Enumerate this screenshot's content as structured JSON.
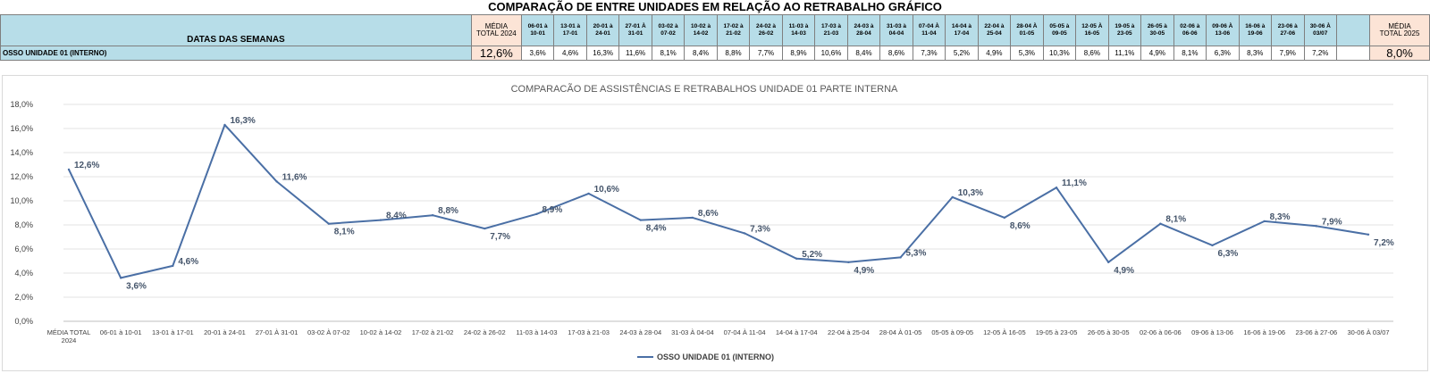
{
  "sheet": {
    "title": "COMPARAÇÃO DE ENTRE UNIDADES EM RELAÇÃO AO RETRABALHO GRÁFICO",
    "row_header": "DATAS DAS SEMANAS",
    "media_2024_header": [
      "MÉDIA",
      "TOTAL 2024"
    ],
    "media_2025_header": [
      "MÉDIA",
      "TOTAL 2025"
    ],
    "week_headers": [
      [
        "06-01 à",
        "10-01"
      ],
      [
        "13-01 à",
        "17-01"
      ],
      [
        "20-01 à",
        "24-01"
      ],
      [
        "27-01 À",
        "31-01"
      ],
      [
        "03-02 à",
        "07-02"
      ],
      [
        "10-02 à",
        "14-02"
      ],
      [
        "17-02 à",
        "21-02"
      ],
      [
        "24-02 à",
        "26-02"
      ],
      [
        "11-03 à",
        "14-03"
      ],
      [
        "17-03 à",
        "21-03"
      ],
      [
        "24-03 à",
        "28-04"
      ],
      [
        "31-03 à",
        "04-04"
      ],
      [
        "07-04 À",
        "11-04"
      ],
      [
        "14-04 à",
        "17-04"
      ],
      [
        "22-04 à",
        "25-04"
      ],
      [
        "28-04 À",
        "01-05"
      ],
      [
        "05-05 à",
        "09-05"
      ],
      [
        "12-05 À",
        "16-05"
      ],
      [
        "19-05 à",
        "23-05"
      ],
      [
        "26-05 à",
        "30-05"
      ],
      [
        "02-06 à",
        "06-06"
      ],
      [
        "09-06 À",
        "13-06"
      ],
      [
        "16-06 à",
        "19-06"
      ],
      [
        "23-06 à",
        "27-06"
      ],
      [
        "30-06 À",
        "03/07"
      ]
    ],
    "row_label": "OSSO UNIDADE 01 (INTERNO)",
    "media_2024_value": "12,6%",
    "week_values": [
      "3,6%",
      "4,6%",
      "16,3%",
      "11,6%",
      "8,1%",
      "8,4%",
      "8,8%",
      "7,7%",
      "8,9%",
      "10,6%",
      "8,4%",
      "8,6%",
      "7,3%",
      "5,2%",
      "4,9%",
      "5,3%",
      "10,3%",
      "8,6%",
      "11,1%",
      "4,9%",
      "8,1%",
      "6,3%",
      "8,3%",
      "7,9%",
      "7,2%"
    ],
    "media_2025_value": "8,0%"
  },
  "chart_data": {
    "type": "line",
    "title": "COMPARACÃO DE ASSISTÊNCIAS E RETRABALHOS UNIDADE 01 PARTE INTERNA",
    "categories": [
      "MÉDIA TOTAL 2024",
      "06-01 à 10-01",
      "13-01 à 17-01",
      "20-01 à 24-01",
      "27-01 À 31-01",
      "03-02 À 07-02",
      "10-02 à 14-02",
      "17-02 à 21-02",
      "24-02 à 26-02",
      "11-03 à 14-03",
      "17-03 à 21-03",
      "24-03 à 28-04",
      "31-03 À 04-04",
      "07-04 À 11-04",
      "14-04 à 17-04",
      "22-04 à 25-04",
      "28-04 À 01-05",
      "05-05 à 09-05",
      "12-05 À 16-05",
      "19-05 à 23-05",
      "26-05 à 30-05",
      "02-06 à 06-06",
      "09-06 à 13-06",
      "16-06 à 19-06",
      "23-06 à 27-06",
      "30-06 À 03/07"
    ],
    "series": [
      {
        "name": "OSSO UNIDADE 01 (INTERNO)",
        "values": [
          12.6,
          3.6,
          4.6,
          16.3,
          11.6,
          8.1,
          8.4,
          8.8,
          7.7,
          8.9,
          10.6,
          8.4,
          8.6,
          7.3,
          5.2,
          4.9,
          5.3,
          10.3,
          8.6,
          11.1,
          4.9,
          8.1,
          6.3,
          8.3,
          7.9,
          7.2
        ],
        "labels": [
          "12,6%",
          "3,6%",
          "4,6%",
          "16,3%",
          "11,6%",
          "8,1%",
          "8,4%",
          "8,8%",
          "7,7%",
          "8,9%",
          "10,6%",
          "8,4%",
          "8,6%",
          "7,3%",
          "5,2%",
          "4,9%",
          "5,3%",
          "10,3%",
          "8,6%",
          "11,1%",
          "4,9%",
          "8,1%",
          "6,3%",
          "8,3%",
          "7,9%",
          "7,2%"
        ],
        "color": "#4a6fa5"
      }
    ],
    "ylim": [
      0,
      18
    ],
    "yticks": [
      "0,0%",
      "2,0%",
      "4,0%",
      "6,0%",
      "8,0%",
      "10,0%",
      "12,0%",
      "14,0%",
      "16,0%",
      "18,0%"
    ],
    "grid": true,
    "legend_position": "bottom"
  }
}
